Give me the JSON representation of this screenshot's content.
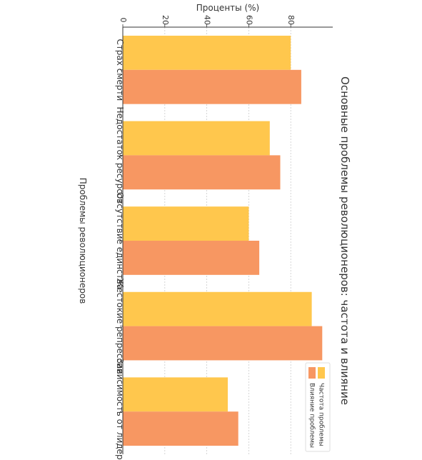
{
  "chart_data": {
    "type": "bar",
    "orientation": "rotated-90-clockwise",
    "title": "Основные проблемы революционеров: частота и влияние",
    "xlabel": "Проблемы революционеров",
    "ylabel": "Проценты (%)",
    "ylim": [
      0,
      100
    ],
    "yticks": [
      0,
      20,
      40,
      60,
      80
    ],
    "grid": true,
    "legend_position": "bottom-left",
    "categories": [
      "Страх смерти",
      "Недостаток ресурсов",
      "Отсутствие единства",
      "Жестокие репрессии",
      "Зависимость от лидера"
    ],
    "series": [
      {
        "name": "Частота проблемы",
        "color": "#FFC74D",
        "values": [
          80,
          70,
          60,
          90,
          50
        ]
      },
      {
        "name": "Влияние проблемы",
        "color": "#F79762",
        "values": [
          85,
          75,
          65,
          95,
          55
        ]
      }
    ]
  }
}
